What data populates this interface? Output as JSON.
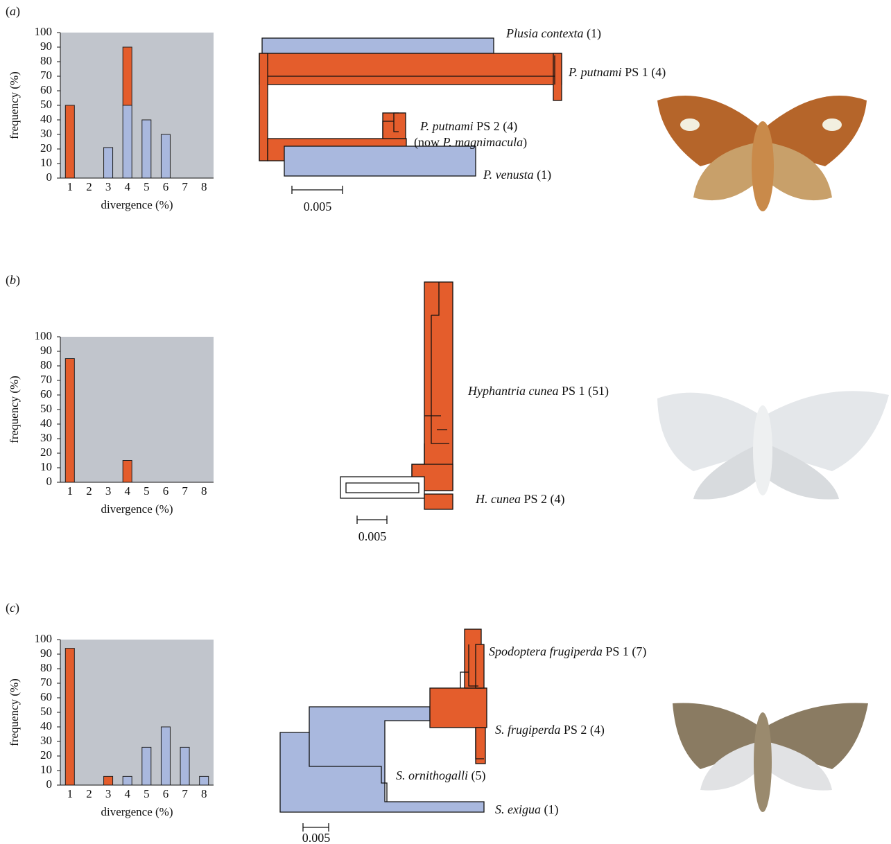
{
  "chart_data": [
    {
      "type": "bar",
      "stacked": true,
      "xlabel": "divergence (%)",
      "ylabel": "frequency (%)",
      "categories": [
        "1",
        "2",
        "3",
        "4",
        "5",
        "6",
        "7",
        "8"
      ],
      "ylim": [
        0,
        100
      ],
      "yticks": [
        0,
        10,
        20,
        30,
        40,
        50,
        60,
        70,
        80,
        90,
        100
      ],
      "background": "#c1c5cc",
      "series": [
        {
          "color": "#a9b8de",
          "values": [
            0,
            0,
            21,
            50,
            40,
            30,
            0,
            0
          ]
        },
        {
          "color": "#e45d2c",
          "values": [
            50,
            0,
            0,
            40,
            0,
            0,
            0,
            0
          ]
        }
      ]
    },
    {
      "type": "bar",
      "stacked": true,
      "xlabel": "divergence (%)",
      "ylabel": "frequency (%)",
      "categories": [
        "1",
        "2",
        "3",
        "4",
        "5",
        "6",
        "7",
        "8"
      ],
      "ylim": [
        0,
        100
      ],
      "yticks": [
        0,
        10,
        20,
        30,
        40,
        50,
        60,
        70,
        80,
        90,
        100
      ],
      "background": "#c1c5cc",
      "series": [
        {
          "color": "#a9b8de",
          "values": [
            0,
            0,
            0,
            0,
            0,
            0,
            0,
            0
          ]
        },
        {
          "color": "#e45d2c",
          "values": [
            85,
            0,
            0,
            15,
            0,
            0,
            0,
            0
          ]
        }
      ]
    },
    {
      "type": "bar",
      "stacked": true,
      "xlabel": "divergence (%)",
      "ylabel": "frequency (%)",
      "categories": [
        "1",
        "2",
        "3",
        "4",
        "5",
        "6",
        "7",
        "8"
      ],
      "ylim": [
        0,
        100
      ],
      "yticks": [
        0,
        10,
        20,
        30,
        40,
        50,
        60,
        70,
        80,
        90,
        100
      ],
      "background": "#c1c5cc",
      "series": [
        {
          "color": "#a9b8de",
          "values": [
            0,
            0,
            0,
            6,
            26,
            40,
            26,
            6
          ]
        },
        {
          "color": "#e45d2c",
          "values": [
            94,
            0,
            6,
            0,
            0,
            0,
            0,
            0
          ]
        }
      ]
    }
  ],
  "panels": [
    {
      "label": [
        {
          "text": "("
        },
        {
          "text": "a",
          "italic": true
        },
        {
          "text": ")"
        }
      ],
      "scale_label": "0.005",
      "tree_labels": [
        [
          {
            "text": "Plusia contexta",
            "italic": true
          },
          {
            "text": " (1)"
          }
        ],
        [
          {
            "text": "P. putnami",
            "italic": true
          },
          {
            "text": " PS 1 (4)"
          }
        ],
        [
          {
            "text": "P. putnami",
            "italic": true
          },
          {
            "text": " PS 2 (4)"
          }
        ],
        [
          {
            "text": "(now "
          },
          {
            "text": "P. magnimacula",
            "italic": true
          },
          {
            "text": ")"
          }
        ],
        [
          {
            "text": "P. venusta",
            "italic": true
          },
          {
            "text": " (1)"
          }
        ]
      ]
    },
    {
      "label": [
        {
          "text": "("
        },
        {
          "text": "b",
          "italic": true
        },
        {
          "text": ")"
        }
      ],
      "scale_label": "0.005",
      "tree_labels": [
        [
          {
            "text": "Hyphantria cunea",
            "italic": true
          },
          {
            "text": " PS 1 (51)"
          }
        ],
        [
          {
            "text": "H. cunea",
            "italic": true
          },
          {
            "text": " PS 2 (4)"
          }
        ]
      ]
    },
    {
      "label": [
        {
          "text": "("
        },
        {
          "text": "c",
          "italic": true
        },
        {
          "text": ")"
        }
      ],
      "scale_label": "0.005",
      "tree_labels": [
        [
          {
            "text": "Spodoptera frugiperda",
            "italic": true
          },
          {
            "text": " PS 1 (7)"
          }
        ],
        [
          {
            "text": "S. frugiperda",
            "italic": true
          },
          {
            "text": " PS 2 (4)"
          }
        ],
        [
          {
            "text": "S. ornithogalli",
            "italic": true
          },
          {
            "text": " (5)"
          }
        ],
        [
          {
            "text": "S. exigua",
            "italic": true
          },
          {
            "text": " (1)"
          }
        ]
      ]
    }
  ]
}
